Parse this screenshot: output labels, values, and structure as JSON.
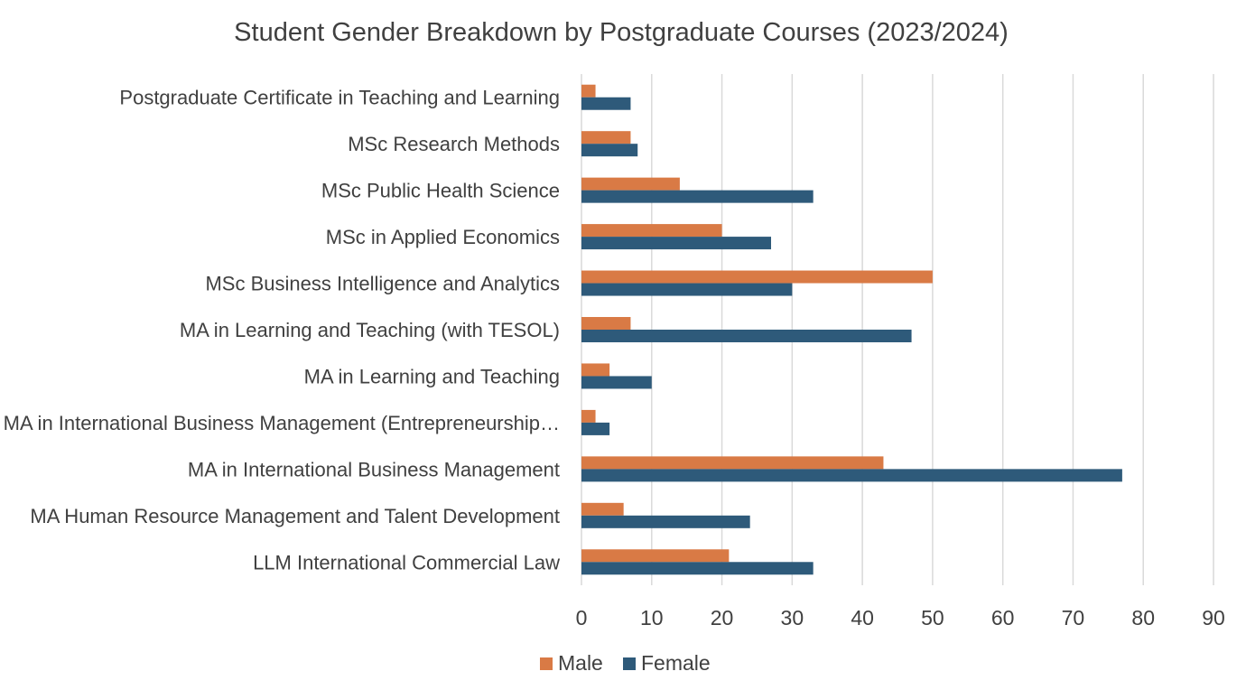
{
  "chart_data": {
    "type": "bar",
    "orientation": "horizontal",
    "title": "Student Gender Breakdown by Postgraduate Courses (2023/2024)",
    "xlabel": "",
    "ylabel": "",
    "xlim": [
      0,
      90
    ],
    "ticks": [
      "0",
      "10",
      "20",
      "30",
      "40",
      "50",
      "60",
      "70",
      "80",
      "90"
    ],
    "grid": true,
    "legend_position": "bottom",
    "categories": [
      "Postgraduate Certificate in Teaching and Learning",
      "MSc Research Methods",
      "MSc Public Health Science",
      "MSc in Applied Economics",
      "MSc Business Intelligence and Analytics",
      "MA in Learning and Teaching (with TESOL)",
      "MA in Learning and Teaching",
      "MA in International Business Management  (Entrepreneurship…",
      "MA in International Business Management",
      "MA Human Resource Management and Talent Development",
      "LLM International Commercial Law"
    ],
    "series": [
      {
        "name": "Male",
        "color": "#D97A45",
        "values": [
          2,
          7,
          14,
          20,
          50,
          7,
          4,
          2,
          43,
          6,
          21
        ]
      },
      {
        "name": "Female",
        "color": "#2E5A7A",
        "values": [
          7,
          8,
          33,
          27,
          30,
          47,
          10,
          4,
          77,
          24,
          33
        ]
      }
    ]
  }
}
